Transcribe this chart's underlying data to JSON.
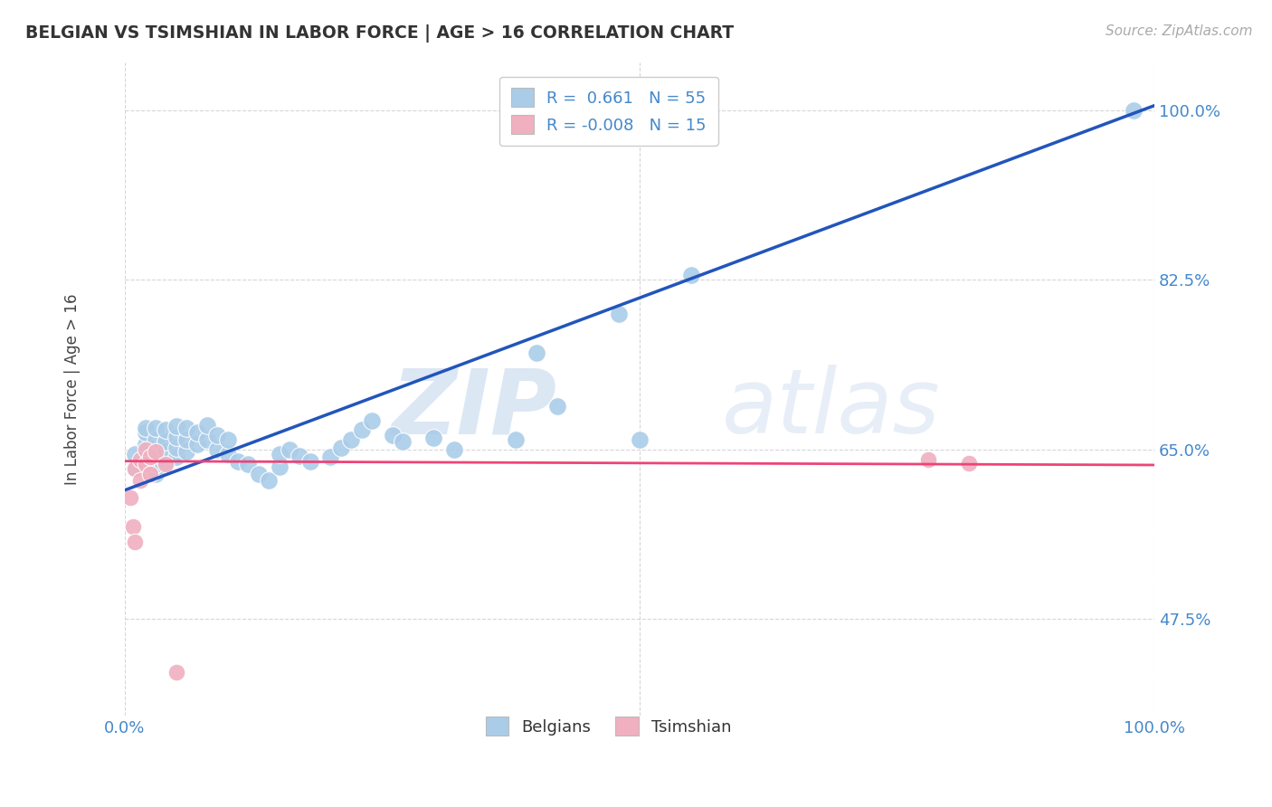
{
  "title": "BELGIAN VS TSIMSHIAN IN LABOR FORCE | AGE > 16 CORRELATION CHART",
  "source_text": "Source: ZipAtlas.com",
  "ylabel": "In Labor Force | Age > 16",
  "xlim": [
    0.0,
    1.0
  ],
  "ylim": [
    0.375,
    1.05
  ],
  "yticks": [
    0.475,
    0.65,
    0.825,
    1.0
  ],
  "ytick_labels": [
    "47.5%",
    "65.0%",
    "82.5%",
    "100.0%"
  ],
  "blue_scatter": [
    [
      0.01,
      0.63
    ],
    [
      0.01,
      0.645
    ],
    [
      0.02,
      0.64
    ],
    [
      0.02,
      0.655
    ],
    [
      0.02,
      0.668
    ],
    [
      0.02,
      0.672
    ],
    [
      0.03,
      0.625
    ],
    [
      0.03,
      0.635
    ],
    [
      0.03,
      0.648
    ],
    [
      0.03,
      0.66
    ],
    [
      0.03,
      0.672
    ],
    [
      0.04,
      0.638
    ],
    [
      0.04,
      0.648
    ],
    [
      0.04,
      0.658
    ],
    [
      0.04,
      0.67
    ],
    [
      0.05,
      0.642
    ],
    [
      0.05,
      0.652
    ],
    [
      0.05,
      0.663
    ],
    [
      0.05,
      0.674
    ],
    [
      0.06,
      0.648
    ],
    [
      0.06,
      0.66
    ],
    [
      0.06,
      0.672
    ],
    [
      0.07,
      0.655
    ],
    [
      0.07,
      0.668
    ],
    [
      0.08,
      0.66
    ],
    [
      0.08,
      0.675
    ],
    [
      0.09,
      0.65
    ],
    [
      0.09,
      0.665
    ],
    [
      0.1,
      0.645
    ],
    [
      0.1,
      0.66
    ],
    [
      0.11,
      0.638
    ],
    [
      0.12,
      0.635
    ],
    [
      0.13,
      0.625
    ],
    [
      0.14,
      0.618
    ],
    [
      0.15,
      0.632
    ],
    [
      0.15,
      0.645
    ],
    [
      0.16,
      0.65
    ],
    [
      0.17,
      0.643
    ],
    [
      0.18,
      0.638
    ],
    [
      0.2,
      0.642
    ],
    [
      0.21,
      0.652
    ],
    [
      0.22,
      0.66
    ],
    [
      0.23,
      0.67
    ],
    [
      0.24,
      0.68
    ],
    [
      0.26,
      0.665
    ],
    [
      0.27,
      0.658
    ],
    [
      0.3,
      0.662
    ],
    [
      0.32,
      0.65
    ],
    [
      0.38,
      0.66
    ],
    [
      0.4,
      0.75
    ],
    [
      0.42,
      0.695
    ],
    [
      0.48,
      0.79
    ],
    [
      0.5,
      0.66
    ],
    [
      0.55,
      0.83
    ],
    [
      0.98,
      1.0
    ]
  ],
  "pink_scatter": [
    [
      0.005,
      0.6
    ],
    [
      0.008,
      0.57
    ],
    [
      0.01,
      0.555
    ],
    [
      0.01,
      0.63
    ],
    [
      0.015,
      0.64
    ],
    [
      0.015,
      0.618
    ],
    [
      0.02,
      0.65
    ],
    [
      0.02,
      0.635
    ],
    [
      0.025,
      0.642
    ],
    [
      0.025,
      0.625
    ],
    [
      0.03,
      0.648
    ],
    [
      0.04,
      0.635
    ],
    [
      0.05,
      0.42
    ],
    [
      0.78,
      0.64
    ],
    [
      0.82,
      0.636
    ]
  ],
  "blue_line_x": [
    0.0,
    1.0
  ],
  "blue_line_y": [
    0.608,
    1.005
  ],
  "pink_line_x": [
    0.0,
    1.0
  ],
  "pink_line_y": [
    0.638,
    0.634
  ],
  "blue_color": "#aacce8",
  "pink_color": "#f0b0c0",
  "blue_line_color": "#2255bb",
  "pink_line_color": "#ee4477",
  "R_blue": 0.661,
  "N_blue": 55,
  "R_pink": -0.008,
  "N_pink": 15,
  "watermark_zip": "ZIP",
  "watermark_atlas": "atlas",
  "bg_color": "#ffffff",
  "grid_color": "#cccccc",
  "title_color": "#333333",
  "tick_label_color": "#4488cc",
  "scatter_size_blue": 200,
  "scatter_size_pink": 180
}
